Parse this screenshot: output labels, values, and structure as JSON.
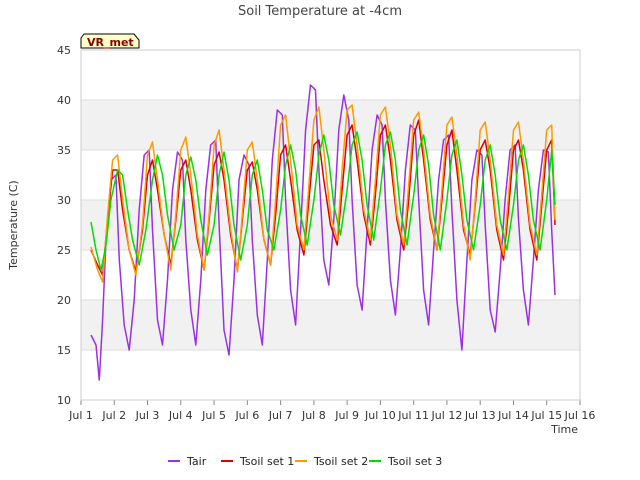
{
  "chart_data": {
    "type": "line",
    "title": "Soil Temperature at -4cm",
    "xlabel": "Time",
    "ylabel": "Temperature (C)",
    "station_label": "VR_met",
    "ylim": [
      10,
      45
    ],
    "xlim": [
      1,
      16
    ],
    "y_ticks": [
      10,
      15,
      20,
      25,
      30,
      35,
      40,
      45
    ],
    "x_ticks": [
      1,
      2,
      3,
      4,
      5,
      6,
      7,
      8,
      9,
      10,
      11,
      12,
      13,
      14,
      15,
      16
    ],
    "x_tick_labels": [
      "Jul 1",
      "Jul 2",
      "Jul 3",
      "Jul 4",
      "Jul 5",
      "Jul 6",
      "Jul 7",
      "Jul 8",
      "Jul 9",
      "Jul 10",
      "Jul 11",
      "Jul 12",
      "Jul 13",
      "Jul 14",
      "Jul 15",
      "Jul 16"
    ],
    "grid": true,
    "legend_position": "bottom",
    "series": [
      {
        "name": "Tair",
        "color": "#9b30e6",
        "x": [
          1.3,
          1.45,
          1.55,
          1.65,
          1.75,
          1.9,
          2.05,
          2.15,
          2.3,
          2.45,
          2.6,
          2.75,
          2.9,
          3.05,
          3.15,
          3.3,
          3.45,
          3.6,
          3.75,
          3.9,
          4.05,
          4.15,
          4.3,
          4.45,
          4.6,
          4.75,
          4.9,
          5.05,
          5.15,
          5.3,
          5.45,
          5.6,
          5.75,
          5.9,
          6.05,
          6.15,
          6.3,
          6.45,
          6.6,
          6.75,
          6.9,
          7.05,
          7.15,
          7.3,
          7.45,
          7.6,
          7.75,
          7.9,
          8.05,
          8.15,
          8.3,
          8.45,
          8.6,
          8.75,
          8.9,
          9.05,
          9.15,
          9.3,
          9.45,
          9.6,
          9.75,
          9.9,
          10.05,
          10.15,
          10.3,
          10.45,
          10.6,
          10.75,
          10.9,
          11.05,
          11.15,
          11.3,
          11.45,
          11.6,
          11.75,
          11.9,
          12.05,
          12.15,
          12.3,
          12.45,
          12.6,
          12.75,
          12.9,
          13.05,
          13.15,
          13.3,
          13.45,
          13.6,
          13.75,
          13.9,
          14.05,
          14.15,
          14.3,
          14.45,
          14.6,
          14.75,
          14.9,
          15.05,
          15.15,
          15.25
        ],
        "y": [
          16.5,
          15.5,
          12.0,
          18.0,
          26.0,
          32.0,
          32.5,
          24.0,
          17.5,
          15.0,
          20.0,
          29.0,
          34.5,
          35.0,
          27.0,
          18.0,
          15.5,
          22.0,
          31.0,
          34.8,
          34.0,
          26.0,
          19.0,
          15.5,
          22.0,
          31.0,
          35.5,
          36.0,
          27.5,
          17.0,
          14.5,
          22.0,
          32.0,
          34.5,
          33.5,
          26.0,
          18.5,
          15.5,
          24.0,
          34.0,
          39.0,
          38.5,
          30.0,
          21.0,
          17.5,
          27.0,
          37.0,
          41.5,
          41.0,
          33.0,
          24.0,
          21.5,
          28.0,
          37.0,
          40.5,
          38.0,
          30.0,
          21.5,
          19.0,
          27.0,
          35.0,
          38.5,
          37.5,
          30.0,
          22.0,
          18.5,
          25.0,
          33.0,
          37.5,
          37.0,
          30.0,
          21.0,
          17.5,
          25.0,
          32.0,
          36.0,
          36.5,
          29.0,
          20.0,
          15.0,
          24.0,
          32.0,
          35.0,
          34.5,
          27.5,
          19.0,
          16.8,
          23.0,
          30.0,
          35.0,
          35.5,
          28.0,
          21.0,
          17.5,
          24.0,
          31.0,
          35.0,
          34.8,
          27.0,
          20.5
        ]
      },
      {
        "name": "Tsoil set 1",
        "color": "#dd0000",
        "x": [
          1.3,
          1.5,
          1.65,
          1.8,
          1.95,
          2.1,
          2.25,
          2.45,
          2.65,
          2.85,
          3.0,
          3.15,
          3.3,
          3.5,
          3.7,
          3.85,
          4.0,
          4.15,
          4.3,
          4.5,
          4.7,
          4.85,
          5.0,
          5.15,
          5.3,
          5.5,
          5.7,
          5.85,
          6.0,
          6.15,
          6.3,
          6.5,
          6.7,
          6.85,
          7.0,
          7.15,
          7.3,
          7.5,
          7.7,
          7.85,
          8.0,
          8.15,
          8.3,
          8.5,
          8.7,
          8.85,
          9.0,
          9.15,
          9.3,
          9.5,
          9.7,
          9.85,
          10.0,
          10.15,
          10.3,
          10.5,
          10.7,
          10.85,
          11.0,
          11.15,
          11.3,
          11.5,
          11.7,
          11.85,
          12.0,
          12.15,
          12.3,
          12.5,
          12.7,
          12.85,
          13.0,
          13.15,
          13.3,
          13.5,
          13.7,
          13.85,
          14.0,
          14.15,
          14.3,
          14.5,
          14.7,
          14.85,
          15.0,
          15.15,
          15.25
        ],
        "y": [
          25.0,
          23.5,
          22.5,
          28.0,
          33.0,
          33.0,
          29.0,
          25.0,
          22.8,
          27.0,
          32.5,
          34.0,
          31.0,
          26.5,
          23.5,
          28.0,
          33.0,
          34.0,
          31.0,
          26.0,
          23.0,
          28.0,
          33.5,
          34.8,
          32.0,
          26.5,
          23.0,
          28.0,
          33.0,
          33.8,
          31.0,
          26.0,
          23.5,
          28.5,
          34.5,
          35.5,
          32.0,
          27.0,
          24.5,
          30.0,
          35.5,
          36.0,
          32.0,
          27.5,
          25.5,
          31.0,
          36.5,
          37.5,
          34.0,
          28.5,
          25.5,
          30.5,
          36.5,
          37.5,
          34.0,
          28.0,
          25.0,
          30.0,
          36.5,
          38.0,
          34.0,
          28.0,
          25.0,
          30.0,
          35.5,
          37.0,
          33.0,
          27.0,
          24.5,
          29.5,
          35.0,
          36.0,
          33.0,
          27.0,
          24.0,
          29.0,
          35.0,
          36.0,
          33.0,
          27.0,
          24.0,
          29.5,
          35.0,
          36.0,
          27.5
        ]
      },
      {
        "name": "Tsoil set 2",
        "color": "#ff9900",
        "x": [
          1.3,
          1.5,
          1.65,
          1.8,
          1.95,
          2.1,
          2.25,
          2.45,
          2.65,
          2.85,
          3.0,
          3.15,
          3.3,
          3.5,
          3.7,
          3.85,
          4.0,
          4.15,
          4.3,
          4.5,
          4.7,
          4.85,
          5.0,
          5.15,
          5.3,
          5.5,
          5.7,
          5.85,
          6.0,
          6.15,
          6.3,
          6.5,
          6.7,
          6.85,
          7.0,
          7.15,
          7.3,
          7.5,
          7.7,
          7.85,
          8.0,
          8.15,
          8.3,
          8.5,
          8.7,
          8.85,
          9.0,
          9.15,
          9.3,
          9.5,
          9.7,
          9.85,
          10.0,
          10.15,
          10.3,
          10.5,
          10.7,
          10.85,
          11.0,
          11.15,
          11.3,
          11.5,
          11.7,
          11.85,
          12.0,
          12.15,
          12.3,
          12.5,
          12.7,
          12.85,
          13.0,
          13.15,
          13.3,
          13.5,
          13.7,
          13.85,
          14.0,
          14.15,
          14.3,
          14.5,
          14.7,
          14.85,
          15.0,
          15.15,
          15.25
        ],
        "y": [
          25.3,
          23.0,
          21.8,
          28.5,
          34.0,
          34.5,
          30.0,
          25.0,
          22.5,
          27.5,
          34.5,
          35.8,
          32.0,
          26.5,
          23.0,
          28.5,
          35.0,
          36.3,
          32.5,
          26.5,
          23.0,
          28.5,
          35.5,
          37.0,
          33.0,
          27.0,
          22.8,
          28.5,
          35.0,
          35.8,
          32.0,
          26.0,
          23.5,
          30.0,
          37.5,
          38.5,
          34.0,
          27.5,
          25.0,
          31.5,
          38.0,
          39.3,
          35.0,
          28.5,
          26.0,
          33.0,
          39.0,
          39.5,
          35.5,
          29.0,
          26.0,
          32.0,
          38.5,
          39.3,
          35.5,
          28.5,
          25.5,
          31.5,
          38.0,
          38.8,
          35.0,
          28.5,
          25.0,
          31.0,
          37.5,
          38.3,
          34.5,
          27.5,
          24.0,
          30.0,
          37.0,
          37.8,
          34.0,
          27.5,
          24.5,
          30.5,
          37.0,
          37.8,
          34.0,
          27.5,
          24.5,
          30.5,
          37.0,
          37.5,
          28.0
        ]
      },
      {
        "name": "Tsoil set 3",
        "color": "#00dd00",
        "x": [
          1.3,
          1.45,
          1.6,
          1.75,
          1.9,
          2.1,
          2.25,
          2.4,
          2.55,
          2.75,
          2.95,
          3.15,
          3.3,
          3.45,
          3.6,
          3.8,
          4.0,
          4.15,
          4.3,
          4.45,
          4.6,
          4.8,
          5.0,
          5.15,
          5.3,
          5.45,
          5.6,
          5.8,
          6.0,
          6.15,
          6.3,
          6.45,
          6.6,
          6.8,
          7.0,
          7.15,
          7.3,
          7.45,
          7.6,
          7.8,
          8.0,
          8.15,
          8.3,
          8.45,
          8.6,
          8.8,
          9.0,
          9.15,
          9.3,
          9.45,
          9.6,
          9.8,
          10.0,
          10.15,
          10.3,
          10.45,
          10.6,
          10.8,
          11.0,
          11.15,
          11.3,
          11.45,
          11.6,
          11.8,
          12.0,
          12.15,
          12.3,
          12.45,
          12.6,
          12.8,
          13.0,
          13.15,
          13.3,
          13.45,
          13.6,
          13.8,
          14.0,
          14.15,
          14.3,
          14.45,
          14.6,
          14.8,
          15.0,
          15.15,
          15.25
        ],
        "y": [
          27.8,
          25.0,
          23.0,
          25.5,
          30.0,
          33.0,
          32.5,
          29.0,
          26.0,
          23.5,
          27.0,
          32.0,
          34.5,
          32.5,
          28.5,
          25.0,
          27.5,
          32.5,
          34.3,
          32.0,
          28.0,
          24.5,
          27.5,
          32.5,
          34.8,
          32.0,
          27.5,
          24.0,
          27.5,
          32.5,
          34.0,
          31.0,
          27.0,
          25.0,
          29.0,
          33.5,
          35.5,
          33.0,
          28.5,
          25.5,
          30.0,
          34.5,
          36.5,
          34.0,
          29.5,
          26.5,
          31.0,
          35.5,
          36.8,
          34.0,
          29.5,
          26.0,
          31.0,
          35.5,
          36.8,
          34.0,
          29.0,
          25.5,
          30.5,
          35.0,
          36.5,
          33.5,
          28.5,
          25.0,
          30.0,
          34.5,
          36.0,
          32.5,
          28.0,
          25.0,
          29.5,
          34.0,
          35.5,
          32.5,
          28.0,
          25.0,
          29.5,
          34.0,
          35.5,
          32.5,
          28.0,
          25.0,
          30.0,
          35.0,
          29.5
        ]
      }
    ]
  }
}
